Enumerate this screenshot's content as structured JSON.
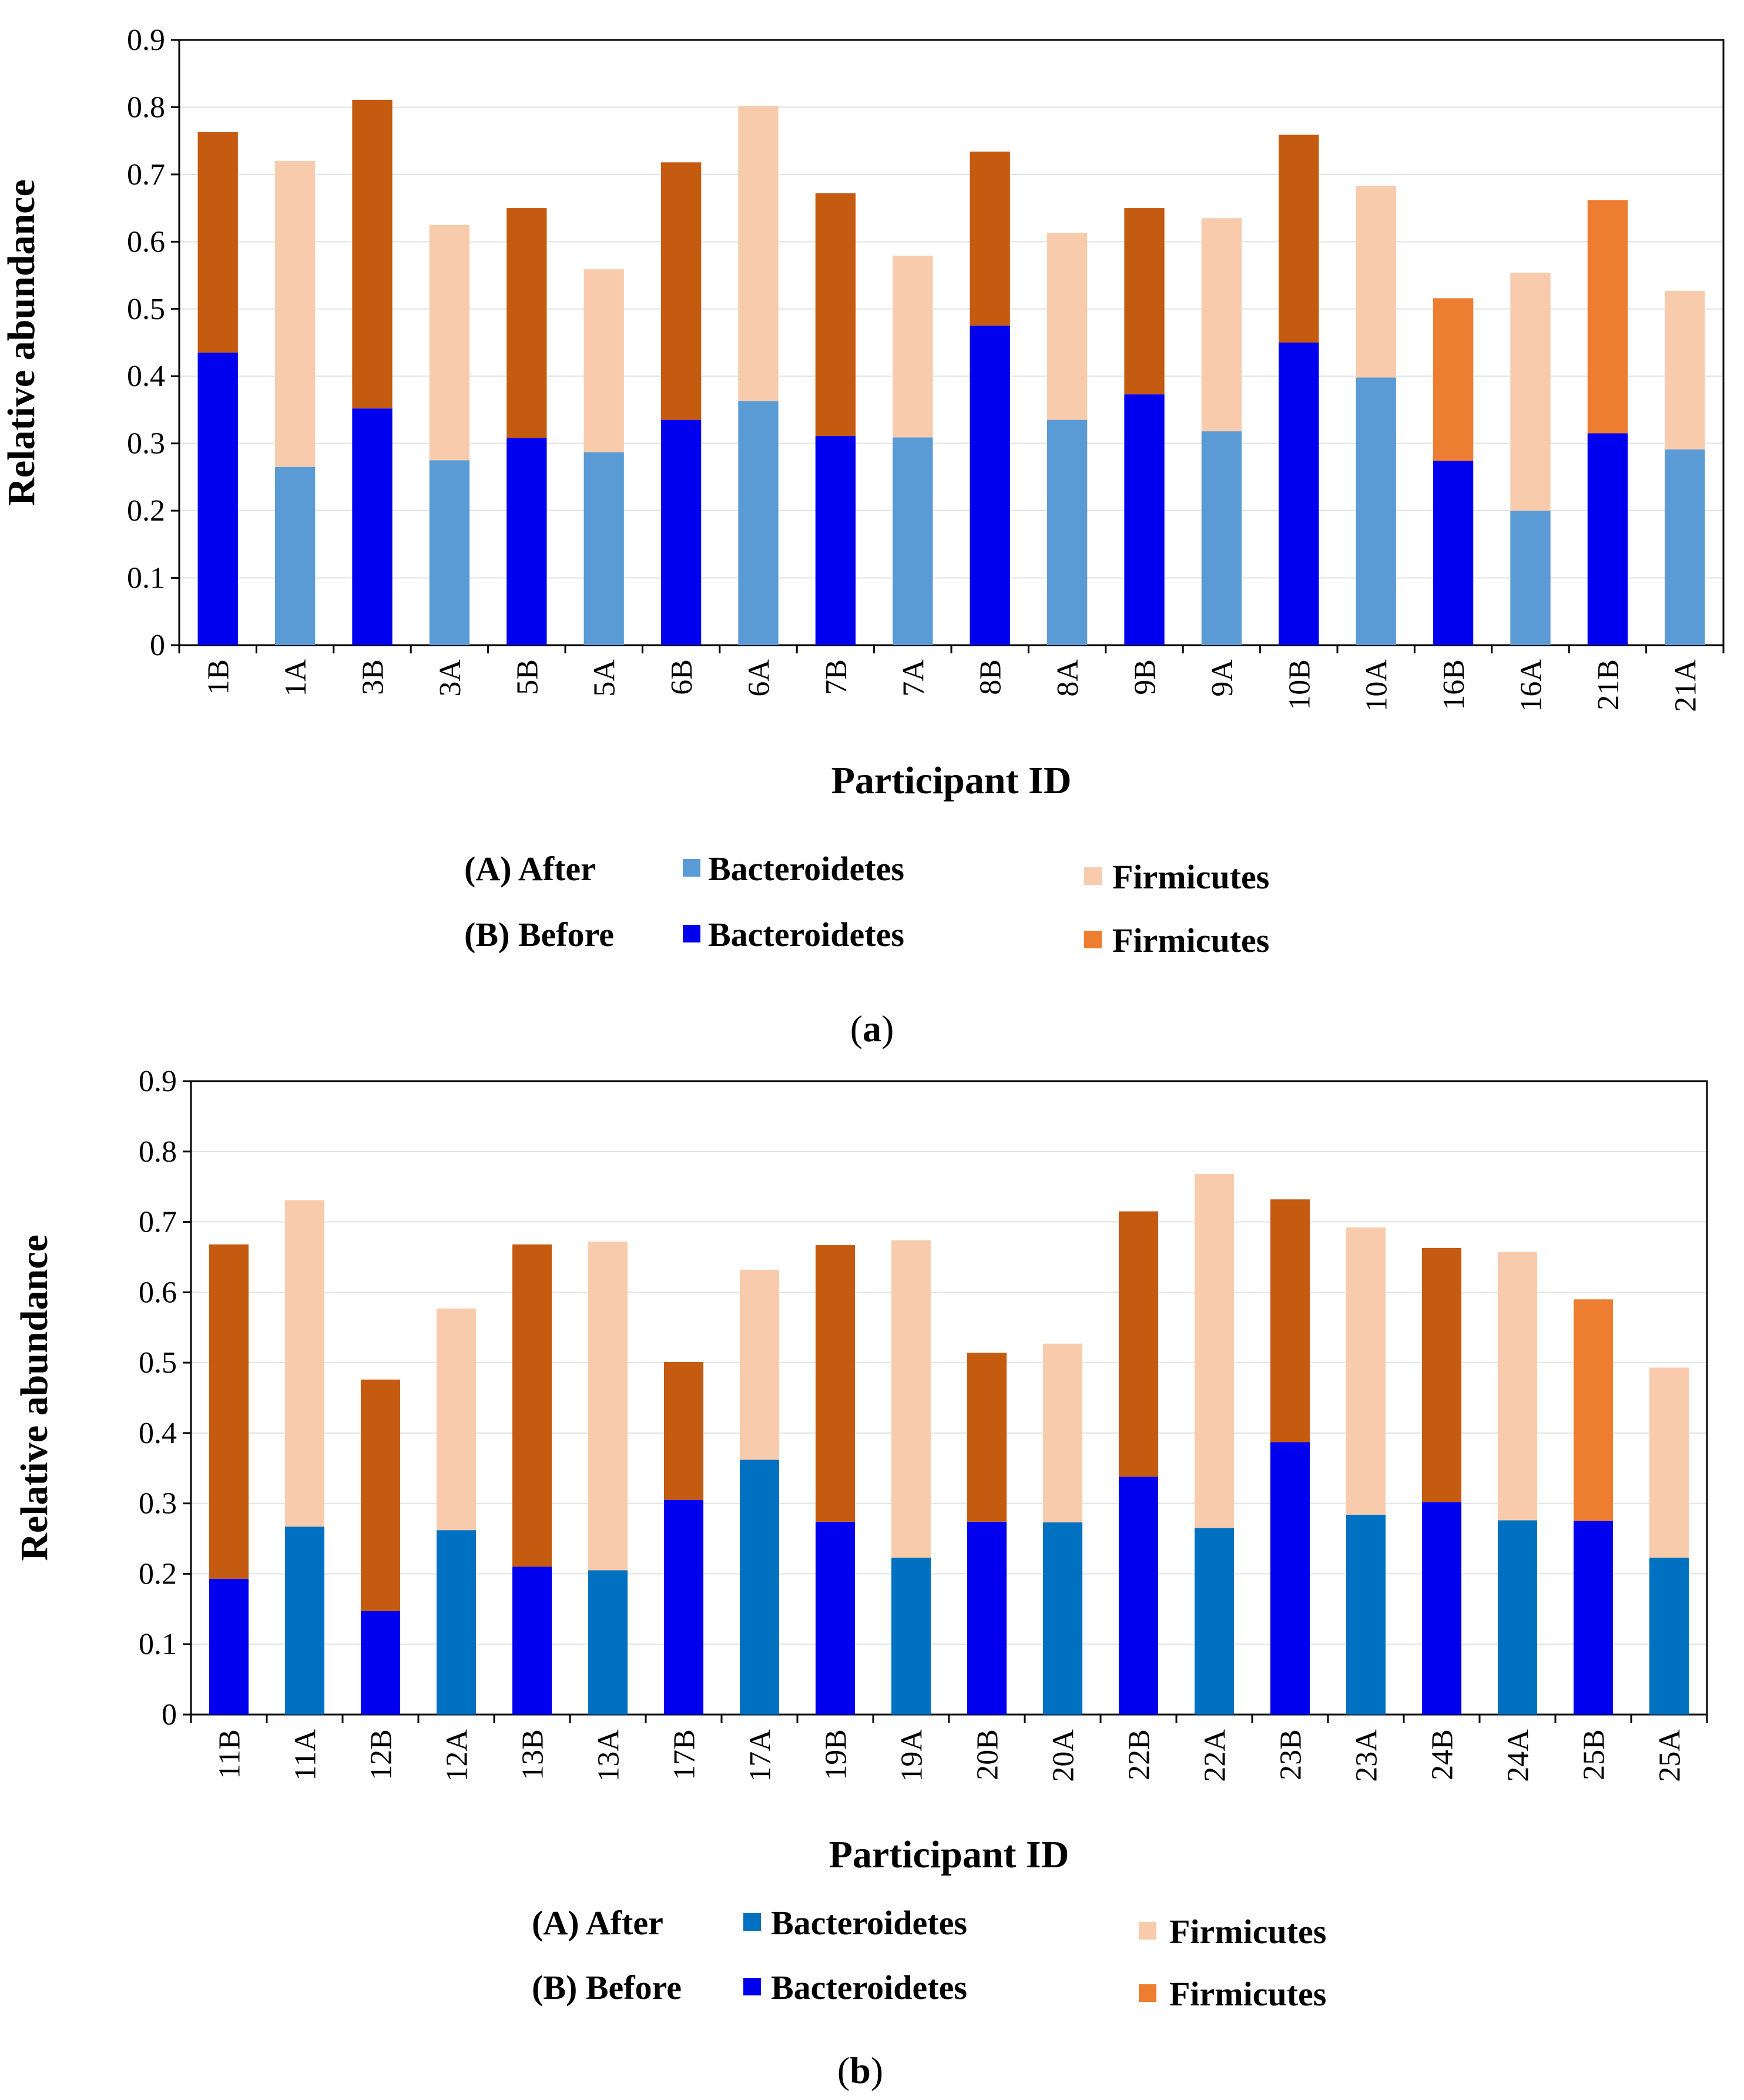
{
  "chart_data": [
    {
      "type": "bar",
      "stacked": true,
      "caption": "a",
      "xlabel": "Participant ID",
      "ylabel": "Relative abundance",
      "ylim": [
        0,
        0.9
      ],
      "yticks": [
        "0",
        "0.1",
        "0.2",
        "0.3",
        "0.4",
        "0.5",
        "0.6",
        "0.7",
        "0.8",
        "0.9"
      ],
      "categories": [
        "1B",
        "1A",
        "3B",
        "3A",
        "5B",
        "5A",
        "6B",
        "6A",
        "7B",
        "7A",
        "8B",
        "8A",
        "9B",
        "9A",
        "10B",
        "10A",
        "16B",
        "16A",
        "21B",
        "21A"
      ],
      "bacteroidetes": [
        0.435,
        0.265,
        0.352,
        0.275,
        0.308,
        0.287,
        0.335,
        0.363,
        0.311,
        0.309,
        0.475,
        0.335,
        0.373,
        0.318,
        0.45,
        0.398,
        0.274,
        0.2,
        0.315,
        0.291
      ],
      "firmicutes": [
        0.328,
        0.455,
        0.459,
        0.35,
        0.342,
        0.272,
        0.383,
        0.439,
        0.361,
        0.27,
        0.259,
        0.278,
        0.277,
        0.317,
        0.309,
        0.285,
        0.242,
        0.354,
        0.347,
        0.236
      ],
      "colors": {
        "bact_after": "#5b9bd5",
        "bact_before": "#0000ee",
        "firm_after": "#f8cbad",
        "firm_before": "#c55a11",
        "firm_before_alt": "#ed7d31"
      },
      "alt_firm_categories": [
        "16B",
        "21B"
      ],
      "legend": {
        "after_label": "(A) After",
        "before_label": "(B) Before",
        "bact_after": "Bacteroidetes",
        "bact_before": "Bacteroidetes",
        "firm_after": "Firmicutes",
        "firm_before": "Firmicutes"
      }
    },
    {
      "type": "bar",
      "stacked": true,
      "caption": "b",
      "xlabel": "Participant ID",
      "ylabel": "Relative abundance",
      "ylim": [
        0,
        0.9
      ],
      "yticks": [
        "0",
        "0.1",
        "0.2",
        "0.3",
        "0.4",
        "0.5",
        "0.6",
        "0.7",
        "0.8",
        "0.9"
      ],
      "categories": [
        "11B",
        "11A",
        "12B",
        "12A",
        "13B",
        "13A",
        "17B",
        "17A",
        "19B",
        "19A",
        "20B",
        "20A",
        "22B",
        "22A",
        "23B",
        "23A",
        "24B",
        "24A",
        "25B",
        "25A"
      ],
      "bacteroidetes": [
        0.193,
        0.267,
        0.147,
        0.262,
        0.21,
        0.205,
        0.305,
        0.362,
        0.274,
        0.223,
        0.274,
        0.273,
        0.338,
        0.265,
        0.387,
        0.284,
        0.302,
        0.276,
        0.275,
        0.223
      ],
      "firmicutes": [
        0.475,
        0.464,
        0.329,
        0.315,
        0.458,
        0.467,
        0.196,
        0.27,
        0.393,
        0.451,
        0.24,
        0.254,
        0.377,
        0.503,
        0.345,
        0.408,
        0.361,
        0.381,
        0.315,
        0.27
      ],
      "colors": {
        "bact_after": "#0070c0",
        "bact_before": "#0000ee",
        "firm_after": "#f8cbad",
        "firm_before": "#c55a11",
        "firm_before_alt": "#ed7d31"
      },
      "alt_firm_categories": [
        "25B"
      ],
      "legend": {
        "after_label": "(A) After",
        "before_label": "(B) Before",
        "bact_after": "Bacteroidetes",
        "bact_before": "Bacteroidetes",
        "firm_after": "Firmicutes",
        "firm_before": "Firmicutes"
      }
    }
  ]
}
